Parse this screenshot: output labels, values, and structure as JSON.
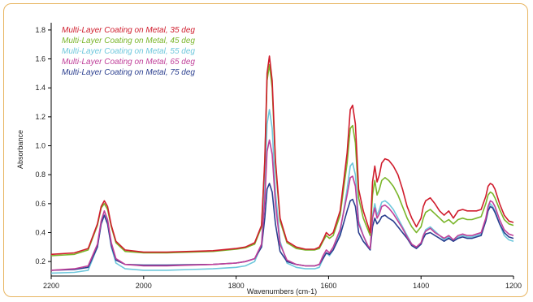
{
  "chart_data": {
    "type": "line",
    "xlabel": "Wavenumbers (cm-1)",
    "ylabel": "Absorbance",
    "xlim": [
      2200,
      1200
    ],
    "ylim": [
      0.1,
      1.85
    ],
    "x_ticks": [
      2200,
      2000,
      1800,
      1600,
      1400,
      1200
    ],
    "y_ticks": [
      0.2,
      0.4,
      0.6,
      0.8,
      1.0,
      1.2,
      1.4,
      1.6,
      1.8
    ],
    "x_tick_labels": [
      "2200",
      "2000",
      "1800",
      "1600",
      "1400",
      "1200"
    ],
    "y_tick_labels": [
      "0.2",
      "0.4",
      "0.6",
      "0.8",
      "1.0",
      "1.2",
      "1.4",
      "1.6",
      "1.8"
    ],
    "legend_position": "top-left",
    "series": [
      {
        "name": "Multi-Layer Coating on Metal, 35 deg",
        "color": "#d01c2c",
        "x": [
          2200,
          2150,
          2120,
          2100,
          2092,
          2085,
          2078,
          2070,
          2060,
          2040,
          2000,
          1950,
          1900,
          1850,
          1800,
          1780,
          1760,
          1745,
          1738,
          1733,
          1728,
          1722,
          1715,
          1705,
          1690,
          1670,
          1650,
          1630,
          1620,
          1612,
          1605,
          1598,
          1590,
          1575,
          1560,
          1553,
          1548,
          1542,
          1535,
          1525,
          1515,
          1510,
          1505,
          1500,
          1495,
          1490,
          1485,
          1478,
          1470,
          1460,
          1450,
          1440,
          1430,
          1420,
          1410,
          1400,
          1395,
          1390,
          1380,
          1370,
          1360,
          1350,
          1340,
          1330,
          1320,
          1310,
          1300,
          1290,
          1280,
          1270,
          1260,
          1255,
          1250,
          1245,
          1240,
          1230,
          1220,
          1210,
          1200
        ],
        "y": [
          0.25,
          0.26,
          0.29,
          0.46,
          0.58,
          0.62,
          0.58,
          0.45,
          0.34,
          0.28,
          0.265,
          0.265,
          0.27,
          0.275,
          0.29,
          0.3,
          0.33,
          0.45,
          0.9,
          1.5,
          1.62,
          1.45,
          0.9,
          0.5,
          0.34,
          0.3,
          0.285,
          0.285,
          0.3,
          0.35,
          0.4,
          0.38,
          0.4,
          0.55,
          0.95,
          1.25,
          1.28,
          1.15,
          0.7,
          0.55,
          0.45,
          0.4,
          0.75,
          0.86,
          0.75,
          0.8,
          0.88,
          0.91,
          0.9,
          0.86,
          0.8,
          0.7,
          0.58,
          0.5,
          0.44,
          0.5,
          0.58,
          0.62,
          0.64,
          0.6,
          0.55,
          0.52,
          0.55,
          0.5,
          0.55,
          0.56,
          0.55,
          0.55,
          0.55,
          0.56,
          0.65,
          0.72,
          0.74,
          0.73,
          0.7,
          0.6,
          0.52,
          0.48,
          0.47
        ]
      },
      {
        "name": "Multi-Layer Coating on Metal, 45 deg",
        "color": "#7ab52a",
        "x": [
          2200,
          2150,
          2120,
          2100,
          2092,
          2085,
          2078,
          2070,
          2060,
          2040,
          2000,
          1950,
          1900,
          1850,
          1800,
          1780,
          1760,
          1745,
          1738,
          1733,
          1728,
          1722,
          1715,
          1705,
          1690,
          1670,
          1650,
          1630,
          1620,
          1612,
          1605,
          1598,
          1590,
          1575,
          1560,
          1553,
          1548,
          1542,
          1535,
          1525,
          1515,
          1510,
          1505,
          1500,
          1495,
          1490,
          1485,
          1478,
          1470,
          1460,
          1450,
          1440,
          1430,
          1420,
          1410,
          1400,
          1395,
          1390,
          1380,
          1370,
          1360,
          1350,
          1340,
          1330,
          1320,
          1310,
          1300,
          1290,
          1280,
          1270,
          1260,
          1255,
          1250,
          1245,
          1240,
          1230,
          1220,
          1210,
          1200
        ],
        "y": [
          0.24,
          0.25,
          0.28,
          0.45,
          0.57,
          0.6,
          0.56,
          0.44,
          0.33,
          0.27,
          0.26,
          0.26,
          0.265,
          0.27,
          0.285,
          0.295,
          0.32,
          0.44,
          0.88,
          1.45,
          1.56,
          1.4,
          0.88,
          0.48,
          0.33,
          0.29,
          0.28,
          0.28,
          0.29,
          0.34,
          0.38,
          0.36,
          0.38,
          0.52,
          0.88,
          1.12,
          1.14,
          1.02,
          0.64,
          0.5,
          0.42,
          0.38,
          0.66,
          0.76,
          0.66,
          0.7,
          0.76,
          0.78,
          0.76,
          0.72,
          0.66,
          0.58,
          0.5,
          0.44,
          0.4,
          0.44,
          0.5,
          0.54,
          0.56,
          0.53,
          0.5,
          0.47,
          0.49,
          0.46,
          0.49,
          0.5,
          0.49,
          0.49,
          0.5,
          0.51,
          0.6,
          0.66,
          0.68,
          0.67,
          0.64,
          0.56,
          0.49,
          0.46,
          0.45
        ]
      },
      {
        "name": "Multi-Layer Coating on Metal, 55 deg",
        "color": "#6ec7dc",
        "x": [
          2200,
          2150,
          2120,
          2100,
          2092,
          2085,
          2078,
          2070,
          2060,
          2040,
          2000,
          1950,
          1900,
          1850,
          1800,
          1780,
          1760,
          1745,
          1738,
          1733,
          1728,
          1722,
          1715,
          1705,
          1690,
          1670,
          1650,
          1630,
          1620,
          1612,
          1605,
          1598,
          1590,
          1575,
          1560,
          1553,
          1548,
          1542,
          1535,
          1525,
          1515,
          1510,
          1505,
          1500,
          1495,
          1490,
          1485,
          1478,
          1470,
          1460,
          1450,
          1440,
          1430,
          1420,
          1410,
          1400,
          1395,
          1390,
          1380,
          1370,
          1360,
          1350,
          1340,
          1330,
          1320,
          1310,
          1300,
          1290,
          1280,
          1270,
          1260,
          1255,
          1250,
          1245,
          1240,
          1230,
          1220,
          1210,
          1200
        ],
        "y": [
          0.12,
          0.125,
          0.14,
          0.3,
          0.46,
          0.52,
          0.46,
          0.3,
          0.19,
          0.15,
          0.14,
          0.14,
          0.145,
          0.15,
          0.16,
          0.17,
          0.2,
          0.32,
          0.7,
          1.15,
          1.25,
          1.12,
          0.68,
          0.34,
          0.19,
          0.16,
          0.15,
          0.15,
          0.16,
          0.22,
          0.26,
          0.24,
          0.28,
          0.4,
          0.7,
          0.86,
          0.88,
          0.8,
          0.48,
          0.38,
          0.3,
          0.28,
          0.52,
          0.6,
          0.52,
          0.56,
          0.61,
          0.62,
          0.6,
          0.56,
          0.5,
          0.44,
          0.38,
          0.32,
          0.29,
          0.32,
          0.38,
          0.42,
          0.44,
          0.41,
          0.38,
          0.35,
          0.37,
          0.34,
          0.37,
          0.38,
          0.37,
          0.37,
          0.38,
          0.39,
          0.48,
          0.56,
          0.6,
          0.58,
          0.55,
          0.46,
          0.38,
          0.35,
          0.34
        ]
      },
      {
        "name": "Multi-Layer Coating on Metal, 65 deg",
        "color": "#c0409a",
        "x": [
          2200,
          2150,
          2120,
          2100,
          2092,
          2085,
          2078,
          2070,
          2060,
          2040,
          2000,
          1950,
          1900,
          1850,
          1800,
          1780,
          1760,
          1745,
          1738,
          1733,
          1728,
          1722,
          1715,
          1705,
          1690,
          1670,
          1650,
          1630,
          1620,
          1612,
          1605,
          1598,
          1590,
          1575,
          1560,
          1553,
          1548,
          1542,
          1535,
          1525,
          1515,
          1510,
          1505,
          1500,
          1495,
          1490,
          1485,
          1478,
          1470,
          1460,
          1450,
          1440,
          1430,
          1420,
          1410,
          1400,
          1395,
          1390,
          1380,
          1370,
          1360,
          1350,
          1340,
          1330,
          1320,
          1310,
          1300,
          1290,
          1280,
          1270,
          1260,
          1255,
          1250,
          1245,
          1240,
          1230,
          1220,
          1210,
          1200
        ],
        "y": [
          0.14,
          0.15,
          0.17,
          0.32,
          0.48,
          0.55,
          0.49,
          0.33,
          0.22,
          0.18,
          0.17,
          0.17,
          0.175,
          0.18,
          0.19,
          0.2,
          0.22,
          0.32,
          0.62,
          0.96,
          1.04,
          0.94,
          0.6,
          0.32,
          0.21,
          0.18,
          0.17,
          0.17,
          0.18,
          0.24,
          0.28,
          0.26,
          0.3,
          0.42,
          0.66,
          0.78,
          0.79,
          0.72,
          0.46,
          0.38,
          0.31,
          0.29,
          0.5,
          0.57,
          0.5,
          0.53,
          0.58,
          0.59,
          0.57,
          0.53,
          0.48,
          0.43,
          0.37,
          0.32,
          0.3,
          0.33,
          0.38,
          0.41,
          0.43,
          0.4,
          0.38,
          0.36,
          0.38,
          0.35,
          0.38,
          0.39,
          0.38,
          0.38,
          0.39,
          0.4,
          0.5,
          0.58,
          0.62,
          0.61,
          0.58,
          0.49,
          0.42,
          0.39,
          0.38
        ]
      },
      {
        "name": "Multi-Layer Coating on Metal, 75 deg",
        "color": "#2b3f8f",
        "x": [
          2200,
          2150,
          2120,
          2100,
          2092,
          2085,
          2078,
          2070,
          2060,
          2040,
          2000,
          1950,
          1900,
          1850,
          1800,
          1780,
          1760,
          1745,
          1738,
          1733,
          1728,
          1722,
          1715,
          1705,
          1690,
          1670,
          1650,
          1630,
          1620,
          1612,
          1605,
          1598,
          1590,
          1575,
          1560,
          1553,
          1548,
          1542,
          1535,
          1525,
          1515,
          1510,
          1505,
          1500,
          1495,
          1490,
          1485,
          1478,
          1470,
          1460,
          1450,
          1440,
          1430,
          1420,
          1410,
          1400,
          1395,
          1390,
          1380,
          1370,
          1360,
          1350,
          1340,
          1330,
          1320,
          1310,
          1300,
          1290,
          1280,
          1270,
          1260,
          1255,
          1250,
          1245,
          1240,
          1230,
          1220,
          1210,
          1200
        ],
        "y": [
          0.14,
          0.145,
          0.16,
          0.3,
          0.46,
          0.52,
          0.46,
          0.31,
          0.21,
          0.18,
          0.175,
          0.175,
          0.178,
          0.18,
          0.19,
          0.2,
          0.22,
          0.3,
          0.5,
          0.7,
          0.74,
          0.68,
          0.46,
          0.27,
          0.2,
          0.18,
          0.17,
          0.17,
          0.18,
          0.22,
          0.26,
          0.25,
          0.28,
          0.38,
          0.55,
          0.62,
          0.63,
          0.58,
          0.4,
          0.34,
          0.3,
          0.28,
          0.44,
          0.5,
          0.46,
          0.48,
          0.51,
          0.52,
          0.5,
          0.48,
          0.44,
          0.4,
          0.36,
          0.31,
          0.29,
          0.32,
          0.36,
          0.39,
          0.4,
          0.38,
          0.36,
          0.34,
          0.36,
          0.34,
          0.36,
          0.37,
          0.36,
          0.36,
          0.37,
          0.38,
          0.48,
          0.55,
          0.58,
          0.57,
          0.54,
          0.46,
          0.4,
          0.37,
          0.36
        ]
      }
    ]
  }
}
